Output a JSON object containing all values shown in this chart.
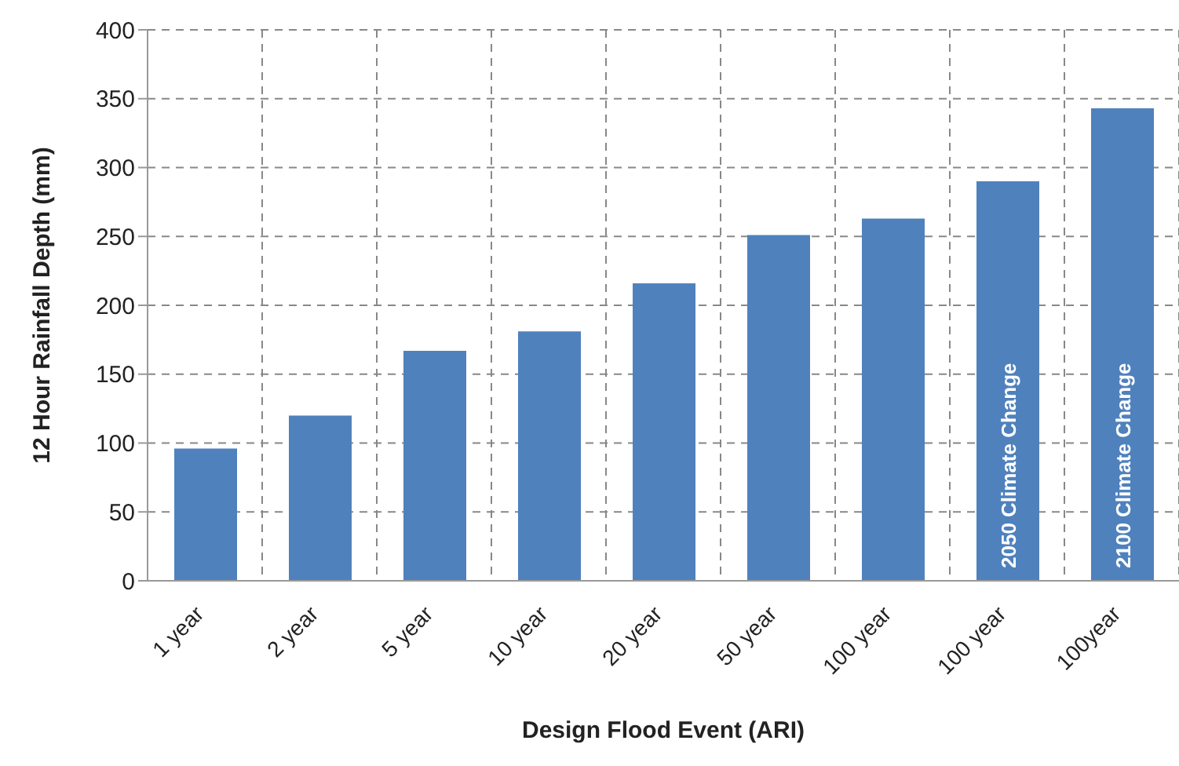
{
  "chart_data": {
    "type": "bar",
    "xlabel": "Design Flood Event (ARI)",
    "ylabel": "12 Hour Rainfall Depth (mm)",
    "categories": [
      "1 year",
      "2 year",
      "5 year",
      "10 year",
      "20 year",
      "50 year",
      "100 year",
      "100 year",
      "100year"
    ],
    "values": [
      96,
      120,
      167,
      181,
      216,
      251,
      263,
      290,
      343
    ],
    "color": "#4f81bd",
    "ylim": [
      0,
      400
    ],
    "yticks": [
      0,
      50,
      100,
      150,
      200,
      250,
      300,
      350,
      400
    ],
    "grid": true,
    "annotations": [
      "2050 Climate Change",
      "2100 Climate Change"
    ]
  }
}
